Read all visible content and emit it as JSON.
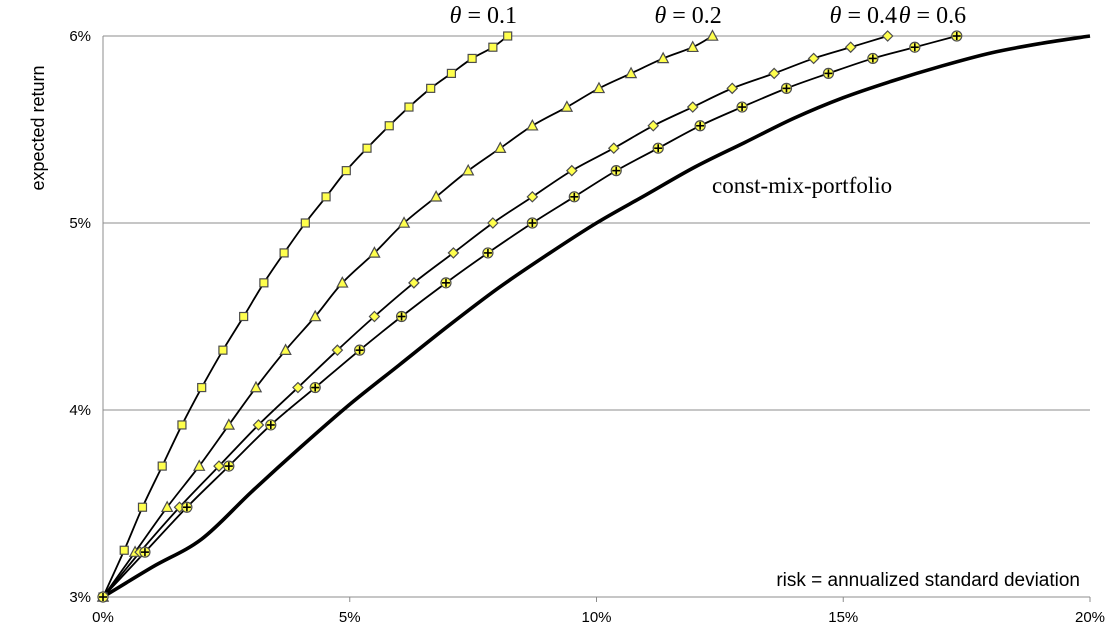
{
  "chart_data": {
    "type": "line",
    "xlabel": "risk = annualized  standard deviation",
    "ylabel": "expected return",
    "x_ticks": [
      "0%",
      "5%",
      "10%",
      "15%",
      "20%"
    ],
    "y_ticks": [
      "3%",
      "4%",
      "5%",
      "6%"
    ],
    "xlim": [
      0,
      20
    ],
    "ylim": [
      3,
      6
    ],
    "grid": "horizontal",
    "annotations": [
      "const-mix-portfolio"
    ],
    "series": [
      {
        "name": "θ = 0.1",
        "marker": "square",
        "x": [
          0,
          0.43,
          0.8,
          1.2,
          1.6,
          2.0,
          2.43,
          2.85,
          3.26,
          3.67,
          4.1,
          4.52,
          4.93,
          5.35,
          5.8,
          6.2,
          6.64,
          7.06,
          7.48,
          7.9,
          8.2
        ],
        "y": [
          3.0,
          3.25,
          3.48,
          3.7,
          3.92,
          4.12,
          4.32,
          4.5,
          4.68,
          4.84,
          5.0,
          5.14,
          5.28,
          5.4,
          5.52,
          5.62,
          5.72,
          5.8,
          5.88,
          5.94,
          6.0
        ]
      },
      {
        "name": "θ = 0.2",
        "marker": "triangle",
        "x": [
          0,
          0.65,
          1.3,
          1.95,
          2.55,
          3.1,
          3.7,
          4.3,
          4.85,
          5.5,
          6.1,
          6.75,
          7.4,
          8.05,
          8.7,
          9.4,
          10.05,
          10.7,
          11.35,
          11.95,
          12.35
        ],
        "y": [
          3.0,
          3.24,
          3.48,
          3.7,
          3.92,
          4.12,
          4.32,
          4.5,
          4.68,
          4.84,
          5.0,
          5.14,
          5.28,
          5.4,
          5.52,
          5.62,
          5.72,
          5.8,
          5.88,
          5.94,
          6.0
        ]
      },
      {
        "name": "θ = 0.4",
        "marker": "diamond",
        "x": [
          0,
          0.75,
          1.55,
          2.35,
          3.15,
          3.95,
          4.75,
          5.5,
          6.3,
          7.1,
          7.9,
          8.7,
          9.5,
          10.35,
          11.15,
          11.95,
          12.75,
          13.6,
          14.4,
          15.15,
          15.9
        ],
        "y": [
          3.0,
          3.24,
          3.48,
          3.7,
          3.92,
          4.12,
          4.32,
          4.5,
          4.68,
          4.84,
          5.0,
          5.14,
          5.28,
          5.4,
          5.52,
          5.62,
          5.72,
          5.8,
          5.88,
          5.94,
          6.0
        ]
      },
      {
        "name": "θ = 0.6",
        "marker": "plus",
        "x": [
          0,
          0.85,
          1.7,
          2.55,
          3.4,
          4.3,
          5.2,
          6.05,
          6.95,
          7.8,
          8.7,
          9.55,
          10.4,
          11.25,
          12.1,
          12.95,
          13.85,
          14.7,
          15.6,
          16.45,
          17.3
        ],
        "y": [
          3.0,
          3.24,
          3.48,
          3.7,
          3.92,
          4.12,
          4.32,
          4.5,
          4.68,
          4.84,
          5.0,
          5.14,
          5.28,
          5.4,
          5.52,
          5.62,
          5.72,
          5.8,
          5.88,
          5.94,
          6.0
        ]
      },
      {
        "name": "const-mix-portfolio",
        "marker": "none",
        "x": [
          0,
          1,
          2,
          3,
          4,
          5,
          6,
          7,
          8,
          9,
          10,
          11,
          12,
          13,
          14,
          15,
          16,
          17,
          18,
          19,
          20
        ],
        "y": [
          3.0,
          3.16,
          3.31,
          3.56,
          3.8,
          4.03,
          4.24,
          4.45,
          4.65,
          4.83,
          5.0,
          5.15,
          5.3,
          5.43,
          5.56,
          5.67,
          5.76,
          5.84,
          5.91,
          5.96,
          6.0
        ]
      }
    ]
  }
}
